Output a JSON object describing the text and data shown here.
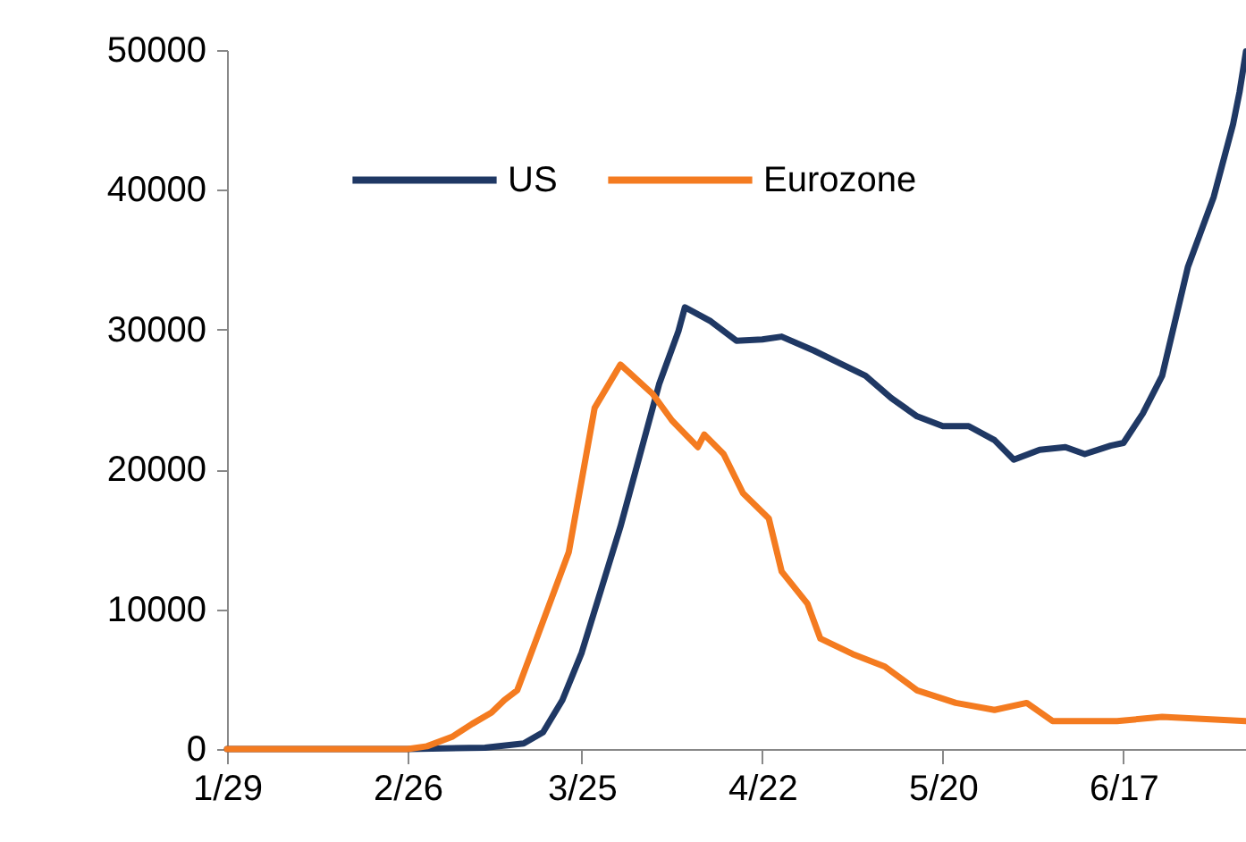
{
  "chart_data": {
    "type": "line",
    "x": [
      "--01-29",
      "--02-26",
      "--03-10",
      "--03-16",
      "--03-19",
      "--03-22",
      "--03-25",
      "--03-28",
      "--03-31",
      "--04-03",
      "--04-06",
      "--04-09",
      "--04-10",
      "--04-14",
      "--04-18",
      "--04-22",
      "--04-25",
      "--04-30",
      "--05-04",
      "--05-08",
      "--05-12",
      "--05-16",
      "--05-20",
      "--05-24",
      "--05-28",
      "--05-31",
      "--06-04",
      "--06-08",
      "--06-11",
      "--06-15",
      "--06-17",
      "--06-20",
      "--06-23",
      "--06-27",
      "--07-01",
      "--07-04",
      "--07-05",
      "--07-06"
    ],
    "series": [
      {
        "name": "US",
        "color": "#1f3864",
        "values": [
          0,
          0,
          100,
          400,
          1200,
          3500,
          6900,
          11400,
          15900,
          21000,
          26100,
          29900,
          31600,
          30600,
          29200,
          29300,
          29500,
          28500,
          27600,
          26700,
          25100,
          23800,
          23100,
          23100,
          22100,
          20700,
          21400,
          21600,
          21100,
          21700,
          21900,
          24000,
          26700,
          34500,
          39500,
          44700,
          47000,
          49900
        ]
      },
      {
        "name": "Eurozone",
        "color": "#f47b20",
        "x": [
          "--01-29",
          "--02-26",
          "--03-01",
          "--03-05",
          "--03-08",
          "--03-11",
          "--03-13",
          "--03-15",
          "--03-18",
          "--03-23",
          "--03-27",
          "--03-31",
          "--04-05",
          "--04-08",
          "--04-12",
          "--04-13",
          "--04-16",
          "--04-19",
          "--04-23",
          "--04-25",
          "--04-29",
          "--05-01",
          "--05-06",
          "--05-11",
          "--05-16",
          "--05-22",
          "--05-28",
          "--06-02",
          "--06-06",
          "--06-16",
          "--06-23",
          "--07-06"
        ],
        "values": [
          0,
          0,
          200,
          900,
          1800,
          2600,
          3500,
          4200,
          7900,
          14100,
          24400,
          27500,
          25400,
          23500,
          21600,
          22500,
          21100,
          18300,
          16500,
          12700,
          10400,
          7900,
          6800,
          5900,
          4200,
          3300,
          2800,
          3300,
          2000,
          2000,
          2300,
          2000
        ]
      }
    ],
    "xlim": [
      "--01-29",
      "--07-06"
    ],
    "xticks": [
      {
        "value": "--01-29",
        "label": "1/29"
      },
      {
        "value": "--02-26",
        "label": "2/26"
      },
      {
        "value": "--03-25",
        "label": "3/25"
      },
      {
        "value": "--04-22",
        "label": "4/22"
      },
      {
        "value": "--05-20",
        "label": "5/20"
      },
      {
        "value": "--06-17",
        "label": "6/17"
      }
    ],
    "ylim": [
      0,
      50000
    ],
    "yticks": [
      0,
      10000,
      20000,
      30000,
      40000,
      50000
    ],
    "legend": "top left",
    "grid": false
  }
}
